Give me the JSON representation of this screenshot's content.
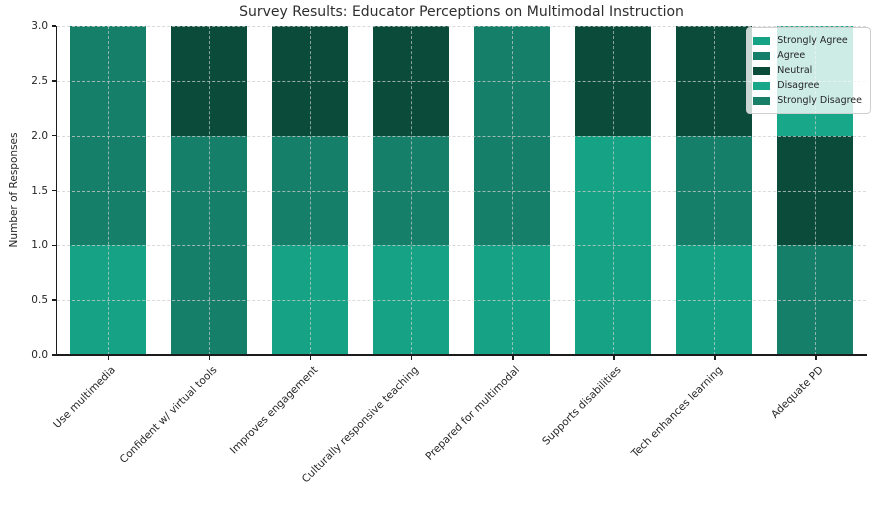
{
  "chart_data": {
    "type": "bar",
    "stacked": true,
    "title": "Survey Results: Educator Perceptions on Multimodal Instruction",
    "xlabel": "",
    "ylabel": "Number of Responses",
    "categories": [
      "Use multimedia",
      "Confident w/ virtual tools",
      "Improves engagement",
      "Culturally responsive teaching",
      "Prepared for multimodal",
      "Supports disabilities",
      "Tech enhances learning",
      "Adequate PD"
    ],
    "series": [
      {
        "name": "Strongly Agree",
        "color": "#16a385",
        "values": [
          1,
          0,
          1,
          1,
          1,
          2,
          1,
          0
        ]
      },
      {
        "name": "Agree",
        "color": "#157f6a",
        "values": [
          2,
          2,
          1,
          1,
          2,
          0,
          1,
          1
        ]
      },
      {
        "name": "Neutral",
        "color": "#0b4b3a",
        "values": [
          0,
          1,
          1,
          1,
          0,
          1,
          1,
          1
        ]
      },
      {
        "name": "Disagree",
        "color": "#19a78a",
        "values": [
          0,
          0,
          0,
          0,
          0,
          0,
          0,
          1
        ]
      },
      {
        "name": "Strongly Disagree",
        "color": "#177e68",
        "values": [
          0,
          0,
          0,
          0,
          0,
          0,
          0,
          0
        ]
      }
    ],
    "ylim": [
      0,
      3
    ],
    "yticks": [
      "0.0",
      "0.5",
      "1.0",
      "1.5",
      "2.0",
      "2.5",
      "3.0"
    ],
    "bar_width_fraction": 0.75,
    "grid": "dashed gridlines on both axes, drawn over bars",
    "legend_position": "upper right",
    "spines": [
      "left",
      "bottom"
    ],
    "axis_color": "#1c1c1c",
    "text_color": "#262626"
  }
}
